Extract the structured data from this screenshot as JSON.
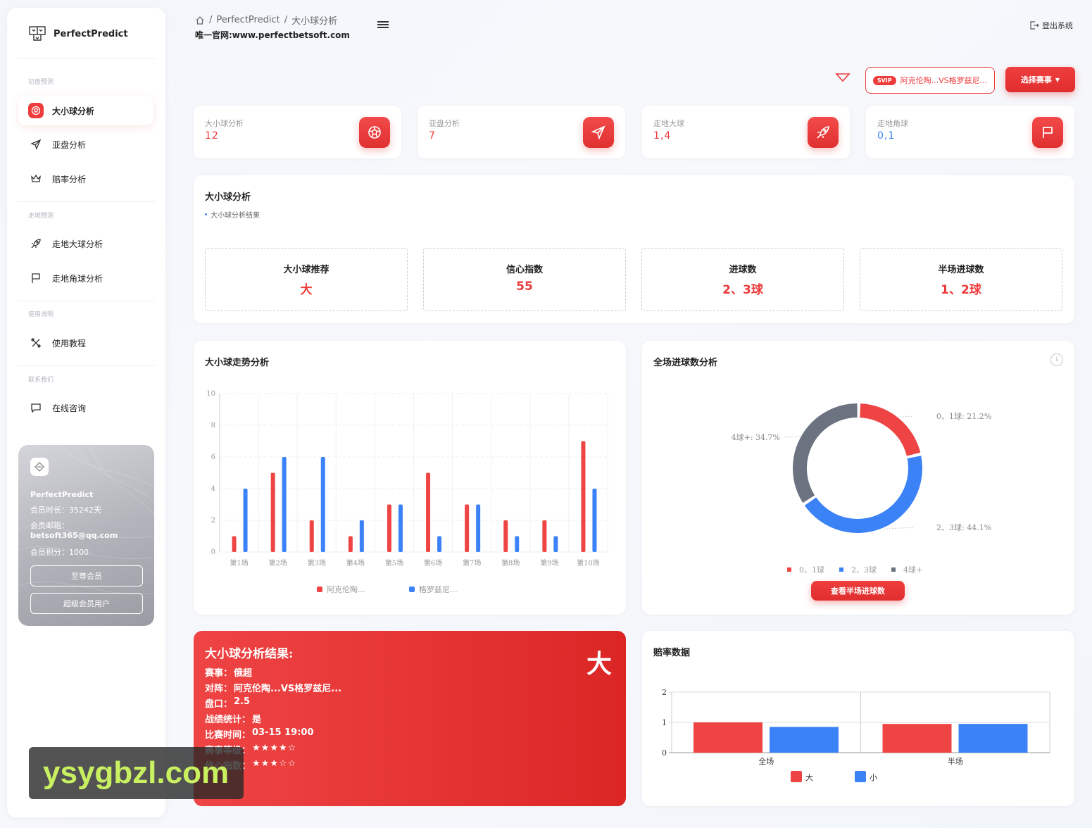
{
  "brand": {
    "name": "PerfectPredict"
  },
  "sidebar": {
    "sections": [
      {
        "title": "初盘预测",
        "items": [
          {
            "label": "大小球分析",
            "icon": "soccer-ball-icon",
            "active": true
          },
          {
            "label": "亚盘分析",
            "icon": "send-icon"
          },
          {
            "label": "赔率分析",
            "icon": "crown-icon"
          }
        ]
      },
      {
        "title": "走地预测",
        "items": [
          {
            "label": "走地大球分析",
            "icon": "rocket-icon"
          },
          {
            "label": "走地角球分析",
            "icon": "flag-icon"
          }
        ]
      },
      {
        "title": "使用说明",
        "items": [
          {
            "label": "使用教程",
            "icon": "tools-icon"
          }
        ]
      },
      {
        "title": "联系我们",
        "items": [
          {
            "label": "在线咨询",
            "icon": "chat-icon"
          }
        ]
      }
    ],
    "member": {
      "name": "PerfectPredict",
      "duration": "会员时长：35242天",
      "email_label": "会员邮箱：",
      "email": "betsoft365@qq.com",
      "points": "会员积分：1000",
      "btn1": "至尊会员",
      "btn2": "超级会员用户"
    }
  },
  "header": {
    "breadcrumb": [
      "PerfectPredict",
      "大小球分析"
    ],
    "site": "唯一官网:www.perfectbetsoft.com",
    "logout": "登出系统"
  },
  "toolbar": {
    "svip": "SVIP",
    "match": "阿克伦陶...VS格罗兹尼...",
    "select": "选择赛事"
  },
  "stats": [
    {
      "label": "大小球分析",
      "value": "12",
      "color": "red",
      "icon": "soccer-ball-icon"
    },
    {
      "label": "亚盘分析",
      "value": "7",
      "color": "red",
      "icon": "send-icon"
    },
    {
      "label": "走地大球",
      "value": "1,4",
      "color": "red",
      "icon": "rocket-icon"
    },
    {
      "label": "走地角球",
      "value": "0,1",
      "color": "blue",
      "icon": "flag-icon"
    }
  ],
  "analysis": {
    "title": "大小球分析",
    "subtitle": "大小球分析结果",
    "boxes": [
      {
        "label": "大小球推荐",
        "value": "大"
      },
      {
        "label": "信心指数",
        "value": "55"
      },
      {
        "label": "进球数",
        "value": "2、3球"
      },
      {
        "label": "半场进球数",
        "value": "1、2球"
      }
    ]
  },
  "trend": {
    "title": "大小球走势分析"
  },
  "goals": {
    "title": "全场进球数分析",
    "info": "i",
    "button": "查看半场进球数"
  },
  "result": {
    "title": "大小球分析结果:",
    "big": "大",
    "lines": [
      {
        "k": "赛事：",
        "v": "俄超"
      },
      {
        "k": "对阵：",
        "v": "阿克伦陶...VS格罗兹尼..."
      },
      {
        "k": "盘口：",
        "v": "2.5"
      },
      {
        "k": "战绩统计：",
        "v": "是"
      },
      {
        "k": "比赛时间：",
        "v": "03-15 19:00"
      },
      {
        "k": "赛事等级：",
        "v": "★★★★☆"
      },
      {
        "k": "信心指数：",
        "v": "★★★☆☆"
      }
    ]
  },
  "odds": {
    "title": "赔率数据"
  },
  "watermark": "ysygbzl.com",
  "chart_data": [
    {
      "type": "bar",
      "categories": [
        "第1场",
        "第2场",
        "第3场",
        "第4场",
        "第5场",
        "第6场",
        "第7场",
        "第8场",
        "第9场",
        "第10场"
      ],
      "series": [
        {
          "name": "阿克伦陶...",
          "color": "#ef4444",
          "values": [
            1,
            5,
            2,
            1,
            3,
            5,
            3,
            2,
            2,
            7
          ]
        },
        {
          "name": "格罗兹尼...",
          "color": "#3b82f6",
          "values": [
            4,
            6,
            6,
            2,
            3,
            1,
            3,
            1,
            1,
            4
          ]
        }
      ],
      "ylim": [
        0,
        10
      ],
      "yticks": [
        0,
        2,
        4,
        6,
        8,
        10
      ],
      "grid": true,
      "legend": "bottom"
    },
    {
      "type": "pie",
      "slices": [
        {
          "name": "0、1球",
          "value": 21.2,
          "label": "0、1球: 21.2%",
          "color": "#ef4444"
        },
        {
          "name": "2、3球",
          "value": 44.1,
          "label": "2、3球: 44.1%",
          "color": "#3b82f6"
        },
        {
          "name": "4球+",
          "value": 34.7,
          "label": "4球+: 34.7%",
          "color": "#6b7280"
        }
      ],
      "legend": "bottom"
    },
    {
      "type": "bar",
      "categories": [
        "全场",
        "半场"
      ],
      "series": [
        {
          "name": "大",
          "color": "#ef4444",
          "values": [
            1.0,
            0.95
          ]
        },
        {
          "name": "小",
          "color": "#3b82f6",
          "values": [
            0.85,
            0.95
          ]
        }
      ],
      "ylim": [
        0,
        2
      ],
      "yticks": [
        0,
        1,
        2
      ],
      "legend": "bottom"
    }
  ]
}
